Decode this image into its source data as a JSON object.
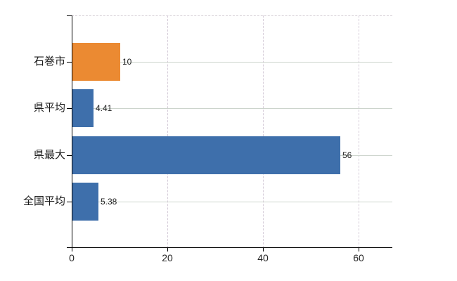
{
  "chart_data": {
    "type": "bar",
    "orientation": "horizontal",
    "title": "",
    "xlabel": "",
    "ylabel": "",
    "categories": [
      "石巻市",
      "県平均",
      "県最大",
      "全国平均"
    ],
    "series": [
      {
        "name": "values",
        "values": [
          10,
          4.41,
          56,
          5.38
        ]
      }
    ],
    "value_labels": [
      "10",
      "4.41",
      "56",
      "5.38"
    ],
    "bar_colors": [
      "#EB8A32",
      "#3E6FAB",
      "#3E6FAB",
      "#3E6FAB"
    ],
    "highlight_category": "石巻市",
    "x_ticks": [
      0,
      20,
      40,
      60
    ],
    "x_tick_labels": [
      "0",
      "20",
      "40",
      "60"
    ],
    "xlim": [
      0,
      67
    ],
    "grid": {
      "horizontal": "solid",
      "vertical": "dashed",
      "top_border": "dashed"
    },
    "legend_position": "none",
    "colors": {
      "bar_blue": "#3E6FAB",
      "bar_orange": "#EB8A32",
      "axis": "#000000",
      "grid_horizontal": "#ccd4cc",
      "grid_vertical": "#d6cdd9",
      "top_border": "#d2cbd2",
      "text": "#1a1a1a"
    }
  }
}
